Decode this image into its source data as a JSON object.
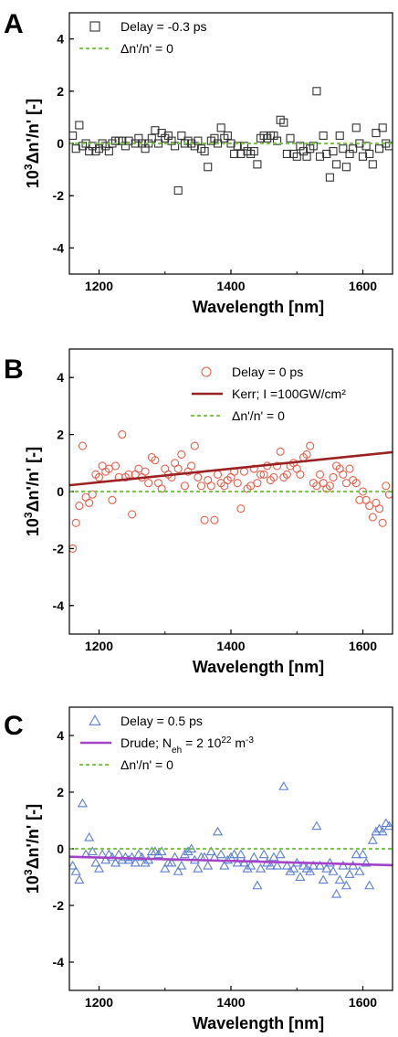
{
  "colors": {
    "delay_neg_marker": "#333333",
    "delay_zero_marker": "#e8604c",
    "kerr_line": "#9b2222",
    "delay_pos_marker": "#5b7fd1",
    "drude_line": "#a344c8",
    "zero_line": "#7dc24a"
  },
  "chart_data": [
    {
      "type": "scatter",
      "panel_label": "A",
      "xlabel": "Wavelength [nm]",
      "ylabel_prefix": "10",
      "ylabel_sup": "3",
      "ylabel_main": "Δn'/n' [-]",
      "xlim": [
        1155,
        1645
      ],
      "ylim": [
        -5,
        5
      ],
      "xticks": [
        1200,
        1400,
        1600
      ],
      "yticks": [
        -4,
        -2,
        0,
        2,
        4
      ],
      "xtick_labels": [
        "1200",
        "1400",
        "1600"
      ],
      "ytick_labels": [
        "-4",
        "-2",
        "0",
        "2",
        "4"
      ],
      "legend_position": "top-left",
      "series": [
        {
          "name": "Delay = -0.3 ps",
          "marker": "square",
          "color": "#333333",
          "x": [
            1160,
            1165,
            1170,
            1175,
            1180,
            1185,
            1190,
            1195,
            1200,
            1205,
            1210,
            1215,
            1220,
            1225,
            1230,
            1235,
            1240,
            1245,
            1255,
            1260,
            1265,
            1270,
            1275,
            1280,
            1285,
            1290,
            1295,
            1300,
            1305,
            1310,
            1315,
            1320,
            1325,
            1330,
            1335,
            1340,
            1345,
            1350,
            1355,
            1360,
            1365,
            1370,
            1375,
            1380,
            1385,
            1390,
            1395,
            1400,
            1405,
            1410,
            1415,
            1420,
            1425,
            1430,
            1435,
            1440,
            1445,
            1450,
            1455,
            1460,
            1465,
            1470,
            1475,
            1480,
            1485,
            1490,
            1495,
            1500,
            1505,
            1510,
            1515,
            1520,
            1525,
            1530,
            1535,
            1540,
            1545,
            1550,
            1555,
            1560,
            1565,
            1570,
            1575,
            1580,
            1585,
            1590,
            1595,
            1600,
            1605,
            1610,
            1615,
            1620,
            1625,
            1630,
            1635,
            1640
          ],
          "y": [
            0.3,
            -0.2,
            0.7,
            -0.1,
            0,
            -0.3,
            -0.1,
            -0.3,
            -0.2,
            0,
            -0.1,
            -0.3,
            0,
            0.1,
            0.1,
            0.1,
            -0.1,
            0.1,
            0,
            0.2,
            0,
            -0.2,
            0,
            0.2,
            0.5,
            0,
            0.4,
            0.2,
            0.3,
            0.1,
            -0.1,
            -1.8,
            0.3,
            0,
            0.1,
            0,
            -0.1,
            0.1,
            -0.2,
            -0.3,
            -0.9,
            0.1,
            0.2,
            0,
            0.6,
            0.2,
            0.3,
            0,
            -0.4,
            -0.1,
            -0.4,
            -0.1,
            -0.3,
            -0.4,
            -0.3,
            -0.8,
            0.2,
            0.3,
            0.2,
            0.3,
            0.3,
            0.1,
            0.9,
            0.8,
            -0.4,
            0.2,
            -0.4,
            -0.5,
            -0.1,
            -0.3,
            -0.5,
            -0.2,
            -0.1,
            2.0,
            -0.5,
            0.3,
            -0.4,
            -1.3,
            -0.3,
            -0.8,
            0.3,
            -0.2,
            -0.9,
            -0.4,
            -0.2,
            0.6,
            0,
            -0.5,
            -0.1,
            -0.4,
            -0.8,
            0.4,
            -0.2,
            0.6,
            0,
            -0.1
          ]
        },
        {
          "name": "Δn'/n' = 0",
          "line_style": "dotted",
          "color": "#7dc24a",
          "x": [
            1155,
            1645
          ],
          "y": [
            0,
            0
          ]
        }
      ]
    },
    {
      "type": "scatter",
      "panel_label": "B",
      "xlabel": "Wavelength [nm]",
      "ylabel_prefix": "10",
      "ylabel_sup": "3",
      "ylabel_main": "Δn'/n' [-]",
      "xlim": [
        1155,
        1645
      ],
      "ylim": [
        -5,
        5
      ],
      "xticks": [
        1200,
        1400,
        1600
      ],
      "yticks": [
        -4,
        -2,
        0,
        2,
        4
      ],
      "xtick_labels": [
        "1200",
        "1400",
        "1600"
      ],
      "ytick_labels": [
        "-4",
        "-2",
        "0",
        "2",
        "4"
      ],
      "legend_position": "top-right",
      "series": [
        {
          "name": "Delay = 0 ps",
          "marker": "circle",
          "color": "#e8604c",
          "x": [
            1160,
            1165,
            1170,
            1175,
            1180,
            1185,
            1190,
            1195,
            1200,
            1205,
            1210,
            1215,
            1220,
            1225,
            1230,
            1235,
            1240,
            1245,
            1250,
            1255,
            1260,
            1265,
            1270,
            1275,
            1280,
            1285,
            1290,
            1295,
            1300,
            1305,
            1310,
            1315,
            1320,
            1325,
            1330,
            1335,
            1340,
            1345,
            1350,
            1355,
            1360,
            1365,
            1370,
            1375,
            1380,
            1385,
            1390,
            1395,
            1400,
            1405,
            1410,
            1415,
            1420,
            1425,
            1430,
            1435,
            1440,
            1445,
            1450,
            1455,
            1460,
            1465,
            1470,
            1475,
            1480,
            1485,
            1490,
            1495,
            1500,
            1505,
            1510,
            1515,
            1520,
            1525,
            1530,
            1535,
            1540,
            1545,
            1550,
            1555,
            1560,
            1565,
            1570,
            1575,
            1580,
            1585,
            1590,
            1595,
            1600,
            1605,
            1610,
            1615,
            1620,
            1625,
            1630,
            1635,
            1640
          ],
          "y": [
            -2.0,
            -1.1,
            -0.5,
            1.6,
            -0.2,
            -0.4,
            -0.1,
            0.6,
            0.5,
            0.9,
            0.7,
            0.8,
            -0.3,
            0.9,
            0.5,
            2.0,
            0.5,
            0.6,
            -0.8,
            0.6,
            0.8,
            0.5,
            0.7,
            0.3,
            1.2,
            1.1,
            0.3,
            0.1,
            0.8,
            0.6,
            0.5,
            1.0,
            0.8,
            1.3,
            0.2,
            0.7,
            0.9,
            1.6,
            0.5,
            0.2,
            -1.0,
            0.4,
            0.2,
            -1.0,
            0.6,
            0.3,
            0.2,
            0.4,
            0.5,
            0.7,
            0.3,
            -0.6,
            0.7,
            0.1,
            0.2,
            0.8,
            0.3,
            0.6,
            0.6,
            0.9,
            0.4,
            0.5,
            0.9,
            1.4,
            0.5,
            0.6,
            0.9,
            1.0,
            0.8,
            0.6,
            1.2,
            1.3,
            1.6,
            0.3,
            0.2,
            0.6,
            0.3,
            0.1,
            0.2,
            0.5,
            0.9,
            0.8,
            0.6,
            0.3,
            0.8,
            0.4,
            0.3,
            -0.3,
            0,
            -0.3,
            -0.5,
            -0.9,
            -0.4,
            -0.6,
            -1.1,
            0.2,
            -0.1
          ]
        },
        {
          "name": "Kerr; I =100GW/cm²",
          "line_style": "solid",
          "color": "#9b2222",
          "x": [
            1155,
            1645
          ],
          "y": [
            0.22,
            1.38
          ]
        },
        {
          "name": "Δn'/n' = 0",
          "line_style": "dotted",
          "color": "#7dc24a",
          "x": [
            1155,
            1645
          ],
          "y": [
            0,
            0
          ]
        }
      ]
    },
    {
      "type": "scatter",
      "panel_label": "C",
      "xlabel": "Wavelength [nm]",
      "ylabel_prefix": "10",
      "ylabel_sup": "3",
      "ylabel_main": "Δn'/n' [-]",
      "xlim": [
        1155,
        1645
      ],
      "ylim": [
        -5,
        5
      ],
      "xticks": [
        1200,
        1400,
        1600
      ],
      "yticks": [
        -4,
        -2,
        0,
        2,
        4
      ],
      "xtick_labels": [
        "1200",
        "1400",
        "1600"
      ],
      "ytick_labels": [
        "-4",
        "-2",
        "0",
        "2",
        "4"
      ],
      "legend_position": "top-left",
      "series": [
        {
          "name": "Delay = 0.5 ps",
          "marker": "triangle",
          "color": "#5b7fd1",
          "x": [
            1160,
            1165,
            1170,
            1175,
            1180,
            1185,
            1190,
            1195,
            1200,
            1205,
            1210,
            1215,
            1220,
            1225,
            1230,
            1235,
            1240,
            1245,
            1250,
            1255,
            1260,
            1265,
            1270,
            1275,
            1280,
            1285,
            1290,
            1295,
            1300,
            1305,
            1310,
            1315,
            1320,
            1325,
            1330,
            1335,
            1340,
            1345,
            1350,
            1355,
            1360,
            1365,
            1370,
            1375,
            1380,
            1385,
            1390,
            1395,
            1400,
            1405,
            1410,
            1415,
            1420,
            1425,
            1430,
            1435,
            1440,
            1445,
            1450,
            1455,
            1460,
            1465,
            1470,
            1475,
            1480,
            1485,
            1490,
            1495,
            1500,
            1505,
            1510,
            1515,
            1520,
            1525,
            1530,
            1535,
            1540,
            1545,
            1550,
            1555,
            1560,
            1565,
            1570,
            1575,
            1580,
            1585,
            1590,
            1595,
            1600,
            1605,
            1610,
            1615,
            1620,
            1625,
            1630,
            1635,
            1640
          ],
          "y": [
            -0.6,
            -0.8,
            -1.1,
            1.6,
            -0.2,
            0.4,
            -0.1,
            -0.5,
            -0.7,
            -0.2,
            -0.4,
            -0.2,
            -0.3,
            -0.5,
            -0.2,
            -0.4,
            -0.3,
            -0.4,
            -0.3,
            -0.5,
            -0.2,
            -0.3,
            -0.5,
            -0.4,
            -0.1,
            -0.1,
            -0.2,
            -0.1,
            -0.7,
            -0.5,
            -0.5,
            -0.3,
            -0.8,
            -0.6,
            -0.2,
            -0.1,
            0,
            -0.4,
            -0.7,
            -0.3,
            -0.3,
            -0.6,
            -0.1,
            -0.3,
            0.6,
            -0.2,
            -0.6,
            -0.4,
            -0.3,
            -0.2,
            -0.5,
            -0.2,
            -0.5,
            -0.7,
            -0.6,
            -0.3,
            -1.3,
            -0.7,
            -0.2,
            -0.5,
            -0.6,
            -0.3,
            -0.6,
            -0.2,
            2.2,
            -0.6,
            -0.8,
            -0.7,
            -0.5,
            -1.0,
            -0.6,
            -0.7,
            -0.8,
            -0.6,
            0.8,
            -0.6,
            -1.1,
            -0.7,
            -0.5,
            -0.8,
            -1.6,
            -1.1,
            -0.6,
            -1.3,
            -0.9,
            -0.6,
            -0.2,
            -0.8,
            -0.2,
            -0.5,
            -1.3,
            0.3,
            0.6,
            0.7,
            0.6,
            0.9,
            0.8
          ]
        },
        {
          "name": "Drude; N",
          "name_sub": "eh",
          "name_rest": " = 2 10",
          "name_sup": "22",
          "name_unit": " m",
          "name_unit_sup": "-3",
          "line_style": "solid",
          "color": "#a344c8",
          "x": [
            1155,
            1645
          ],
          "y": [
            -0.28,
            -0.58
          ]
        },
        {
          "name": "Δn'/n' = 0",
          "line_style": "dotted",
          "color": "#7dc24a",
          "x": [
            1155,
            1645
          ],
          "y": [
            0,
            0
          ]
        }
      ]
    }
  ]
}
